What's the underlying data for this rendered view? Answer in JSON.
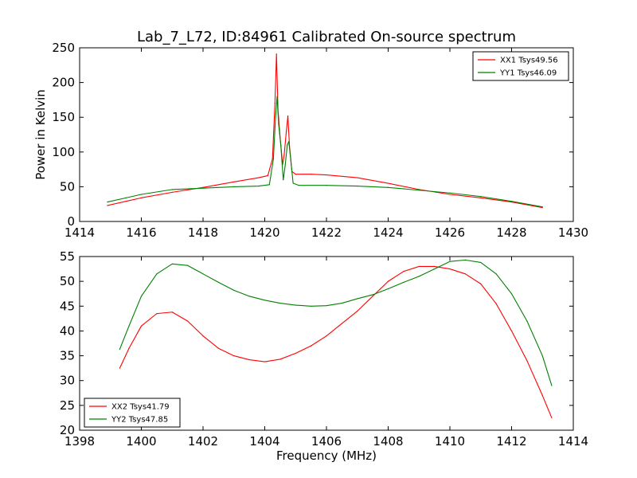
{
  "title": "Lab_7_L72, ID:84961 Calibrated On-source spectrum",
  "chart_data": [
    {
      "type": "line",
      "xlabel": "",
      "ylabel": "Power in Kelvin",
      "xlim": [
        1414,
        1430
      ],
      "ylim": [
        0,
        250
      ],
      "xticks": [
        "1414",
        "1416",
        "1418",
        "1420",
        "1422",
        "1424",
        "1426",
        "1428",
        "1430"
      ],
      "yticks": [
        "0",
        "50",
        "100",
        "150",
        "200",
        "250"
      ],
      "legend_position": "top-right",
      "series": [
        {
          "name": "XX1 Tsys49.56",
          "color": "#ff0000",
          "x": [
            1414.9,
            1415.5,
            1416,
            1417,
            1418,
            1419,
            1419.8,
            1420.1,
            1420.25,
            1420.33,
            1420.38,
            1420.43,
            1420.5,
            1420.58,
            1420.63,
            1420.7,
            1420.75,
            1420.8,
            1420.88,
            1421,
            1421.5,
            1422,
            1423,
            1424,
            1425,
            1426,
            1427,
            1428,
            1429
          ],
          "y": [
            23,
            29,
            34,
            42,
            49,
            57,
            63,
            66,
            90,
            170,
            241,
            160,
            120,
            82,
            96,
            130,
            152,
            110,
            72,
            68,
            68,
            67,
            63,
            55,
            46,
            39,
            34,
            28,
            20
          ]
        },
        {
          "name": "YY1 Tsys46.09",
          "color": "#008000",
          "x": [
            1414.9,
            1415.5,
            1416,
            1417,
            1418,
            1419,
            1419.8,
            1420.15,
            1420.28,
            1420.35,
            1420.4,
            1420.45,
            1420.52,
            1420.6,
            1420.66,
            1420.73,
            1420.78,
            1420.84,
            1420.92,
            1421.1,
            1422,
            1423,
            1424,
            1425,
            1426,
            1427,
            1428,
            1429
          ],
          "y": [
            28,
            34,
            39,
            46,
            48,
            50,
            51,
            53,
            90,
            150,
            180,
            140,
            110,
            60,
            80,
            110,
            115,
            90,
            55,
            52,
            52,
            51,
            49,
            45,
            41,
            36,
            29,
            21
          ]
        }
      ]
    },
    {
      "type": "line",
      "xlabel": "Frequency (MHz)",
      "ylabel": "",
      "xlim": [
        1398,
        1414
      ],
      "ylim": [
        20,
        55
      ],
      "xticks": [
        "1398",
        "1400",
        "1402",
        "1404",
        "1406",
        "1408",
        "1410",
        "1412",
        "1414"
      ],
      "yticks": [
        "20",
        "25",
        "30",
        "35",
        "40",
        "45",
        "50",
        "55"
      ],
      "legend_position": "bottom-left",
      "series": [
        {
          "name": "XX2 Tsys41.79",
          "color": "#ff0000",
          "x": [
            1399.3,
            1399.6,
            1400,
            1400.5,
            1401,
            1401.5,
            1402,
            1402.5,
            1403,
            1403.5,
            1404,
            1404.5,
            1405,
            1405.5,
            1406,
            1406.5,
            1407,
            1407.5,
            1408,
            1408.5,
            1409,
            1409.5,
            1410,
            1410.5,
            1411,
            1411.5,
            1412,
            1412.5,
            1413,
            1413.3
          ],
          "y": [
            32.5,
            36.5,
            41,
            43.5,
            43.8,
            42,
            39,
            36.5,
            35,
            34.2,
            33.8,
            34.3,
            35.5,
            37,
            39,
            41.5,
            44,
            47,
            50,
            52,
            53,
            53,
            52.5,
            51.5,
            49.5,
            45.5,
            40,
            34,
            27,
            22.5
          ]
        },
        {
          "name": "YY2 Tsys47.85",
          "color": "#008000",
          "x": [
            1399.3,
            1399.6,
            1400,
            1400.5,
            1401,
            1401.5,
            1402,
            1402.5,
            1403,
            1403.5,
            1404,
            1404.5,
            1405,
            1405.5,
            1406,
            1406.5,
            1407,
            1407.5,
            1408,
            1408.5,
            1409,
            1409.5,
            1410,
            1410.5,
            1411,
            1411.5,
            1412,
            1412.5,
            1413,
            1413.3
          ],
          "y": [
            36.3,
            41,
            47,
            51.5,
            53.5,
            53.2,
            51.5,
            49.8,
            48.2,
            47,
            46.2,
            45.6,
            45.2,
            45,
            45.1,
            45.6,
            46.5,
            47.3,
            48.5,
            49.8,
            51,
            52.5,
            54,
            54.3,
            53.8,
            51.5,
            47.5,
            42,
            35,
            29
          ]
        }
      ]
    }
  ]
}
